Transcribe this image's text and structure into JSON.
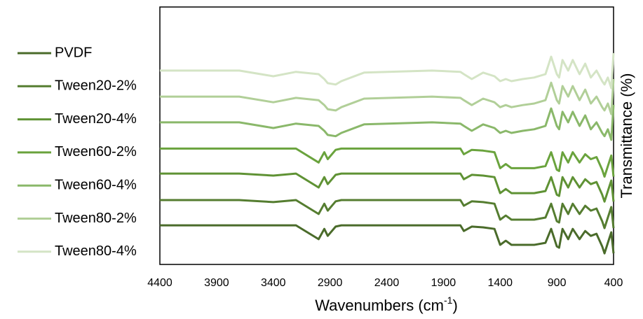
{
  "chart_data": {
    "type": "line",
    "xlabel": "Wavenumbers (cm",
    "xlabel_sup": "-1",
    "xlabel_end": ")",
    "ylabel": "Transmittance (%)",
    "xlim": [
      4400,
      400
    ],
    "xticks": [
      4400,
      3900,
      3400,
      2900,
      2400,
      1900,
      1400,
      900,
      400
    ],
    "ylim": [
      0,
      100
    ],
    "legend": "left",
    "x": [
      4400,
      4000,
      3700,
      3400,
      3200,
      3000,
      2950,
      2920,
      2850,
      2800,
      2600,
      2000,
      1750,
      1720,
      1650,
      1550,
      1450,
      1400,
      1350,
      1300,
      1200,
      1100,
      1000,
      950,
      900,
      880,
      850,
      800,
      760,
      700,
      650,
      600,
      550,
      500,
      480,
      450,
      420,
      400
    ],
    "series": [
      {
        "name": "PVDF",
        "color": "#4a6b2a",
        "values": [
          15.2,
          15.2,
          15.2,
          15.2,
          15.2,
          9.8,
          13.8,
          11.1,
          14.7,
          15.2,
          15.2,
          15.2,
          15.2,
          13.0,
          14.7,
          14.4,
          13.8,
          7.6,
          9.2,
          7.6,
          7.6,
          7.6,
          8.4,
          13.8,
          7.0,
          6.5,
          13.8,
          9.8,
          13.8,
          9.8,
          13.0,
          11.1,
          11.9,
          7.0,
          4.3,
          8.4,
          12.5,
          4.3
        ]
      },
      {
        "name": "Tween20-2%",
        "color": "#557d30",
        "values": [
          25,
          25,
          25,
          24.2,
          25,
          19.6,
          23.6,
          20.9,
          24.5,
          25,
          25,
          25,
          25,
          22.8,
          24.5,
          24.2,
          23.6,
          17.4,
          19,
          17.4,
          17.4,
          17.4,
          18.2,
          23.6,
          16.8,
          16.3,
          23.6,
          19.6,
          23.6,
          19.6,
          22.8,
          20.9,
          21.7,
          16.8,
          14.1,
          18.2,
          22.3,
          14.1
        ]
      },
      {
        "name": "Tween20-4%",
        "color": "#5f9234",
        "values": [
          35.3,
          35.3,
          35.3,
          34.5,
          35.3,
          29.9,
          33.9,
          31.2,
          34.8,
          35.3,
          35.3,
          35.3,
          35.3,
          33.1,
          34.8,
          34.5,
          33.9,
          27.7,
          29.3,
          27.7,
          27.7,
          27.7,
          28.5,
          33.9,
          27.1,
          26.6,
          33.9,
          29.9,
          33.9,
          29.9,
          33.1,
          31.2,
          32,
          27.1,
          24.4,
          28.5,
          32.6,
          24.4
        ]
      },
      {
        "name": "Tween60-2%",
        "color": "#6aa33d",
        "values": [
          45,
          45,
          45,
          45,
          45,
          39.6,
          43.6,
          40.9,
          44.5,
          45,
          45,
          45,
          45,
          42.8,
          44.5,
          44.2,
          43.6,
          37.4,
          39,
          37.4,
          37.4,
          37.4,
          38.2,
          43.6,
          36.8,
          36.3,
          43.6,
          39.6,
          43.6,
          39.6,
          42.8,
          40.9,
          41.7,
          36.8,
          34.1,
          38.2,
          42.3,
          34.1
        ]
      },
      {
        "name": "Tween60-4%",
        "color": "#8ab86a",
        "values": [
          55.2,
          55.2,
          55.2,
          53.0,
          54.7,
          53.8,
          51.9,
          50.3,
          49.8,
          51.1,
          54.4,
          55.2,
          54.7,
          53.8,
          51.9,
          54.4,
          53.0,
          51.1,
          51.9,
          51.1,
          51.9,
          52.5,
          53.8,
          60.6,
          53.8,
          52.5,
          59.3,
          55.2,
          59.3,
          53.8,
          57.9,
          52.5,
          55.2,
          51.1,
          49.8,
          52.5,
          48.4,
          62.0
        ]
      },
      {
        "name": "Tween80-2%",
        "color": "#b1cf98",
        "values": [
          65.2,
          65.2,
          65.2,
          63,
          64.7,
          63.8,
          61.9,
          60.3,
          59.8,
          61.1,
          64.4,
          65.2,
          64.7,
          63.8,
          61.9,
          64.4,
          63,
          61.1,
          61.9,
          61.1,
          61.9,
          62.5,
          63.8,
          70.6,
          63.8,
          62.5,
          69.3,
          65.2,
          69.3,
          63.8,
          67.9,
          62.5,
          65.2,
          61.1,
          59.8,
          62.5,
          58.4,
          72
        ]
      },
      {
        "name": "Tween80-4%",
        "color": "#d4e4c5",
        "values": [
          75.3,
          75.3,
          75.3,
          73.1,
          74.8,
          73.9,
          72,
          70.4,
          69.9,
          71.2,
          74.5,
          75.3,
          74.8,
          73.9,
          72,
          74.5,
          73.1,
          71.2,
          72,
          71.2,
          72,
          72.6,
          73.9,
          80.7,
          73.9,
          72.6,
          79.4,
          75.3,
          79.4,
          73.9,
          78,
          72.6,
          75.3,
          71.2,
          69.9,
          72.6,
          68.5,
          82.1
        ]
      }
    ]
  }
}
